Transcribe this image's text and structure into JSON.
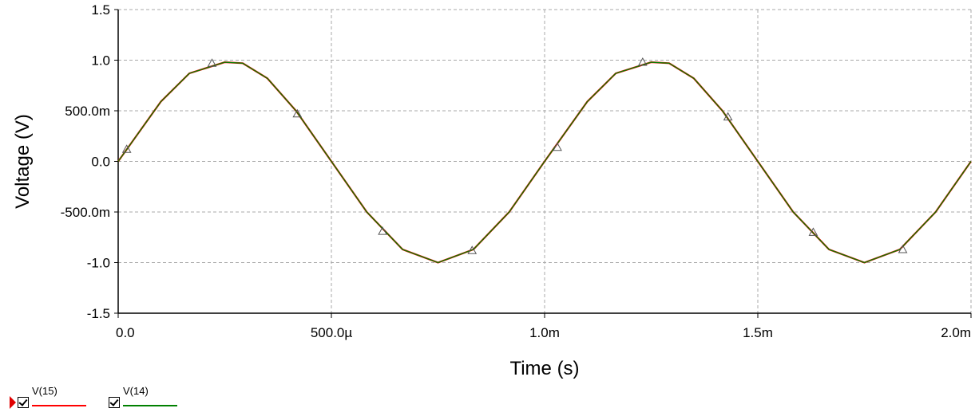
{
  "chart_data": {
    "type": "line",
    "title": "",
    "xlabel": "Time (s)",
    "ylabel": "Voltage (V)",
    "xlim": [
      0,
      0.002
    ],
    "ylim": [
      -1.5,
      1.5
    ],
    "grid": true,
    "x_ticks": [
      {
        "value": 0,
        "label": "0.0"
      },
      {
        "value": 0.0005,
        "label": "500.0µ"
      },
      {
        "value": 0.001,
        "label": "1.0m"
      },
      {
        "value": 0.0015,
        "label": "1.5m"
      },
      {
        "value": 0.002,
        "label": "2.0m"
      }
    ],
    "y_ticks": [
      {
        "value": 1.5,
        "label": "1.5"
      },
      {
        "value": 1.0,
        "label": "1.0"
      },
      {
        "value": 0.5,
        "label": "500.0m"
      },
      {
        "value": 0.0,
        "label": "0.0"
      },
      {
        "value": -0.5,
        "label": "-500.0m"
      },
      {
        "value": -1.0,
        "label": "-1.0"
      },
      {
        "value": -1.5,
        "label": "-1.5"
      }
    ],
    "x": [
      0,
      0.0001,
      0.000167,
      0.00025,
      0.000292,
      0.00035,
      0.000417,
      0.0005,
      0.000583,
      0.000667,
      0.00075,
      0.000833,
      0.000917,
      0.001,
      0.0011,
      0.001167,
      0.00125,
      0.001292,
      0.00135,
      0.001417,
      0.0015,
      0.001583,
      0.001667,
      0.00175,
      0.001833,
      0.001917,
      0.002
    ],
    "series": [
      {
        "name": "V(15)",
        "color": "#ff0000",
        "values": [
          0.0,
          0.59,
          0.87,
          0.98,
          0.97,
          0.82,
          0.5,
          0.0,
          -0.5,
          -0.87,
          -1.0,
          -0.87,
          -0.5,
          0.0,
          0.59,
          0.87,
          0.98,
          0.97,
          0.82,
          0.5,
          0.0,
          -0.5,
          -0.87,
          -1.0,
          -0.87,
          -0.5,
          0.0
        ]
      },
      {
        "name": "V(14)",
        "color": "#008000",
        "values": [
          0.0,
          0.59,
          0.87,
          0.98,
          0.97,
          0.82,
          0.5,
          0.0,
          -0.5,
          -0.87,
          -1.0,
          -0.87,
          -0.5,
          0.0,
          0.59,
          0.87,
          0.98,
          0.97,
          0.82,
          0.5,
          0.0,
          -0.5,
          -0.87,
          -1.0,
          -0.87,
          -0.5,
          0.0
        ]
      }
    ],
    "markers": [
      {
        "x": 2e-05,
        "y": 0.12
      },
      {
        "x": 0.00022,
        "y": 0.97
      },
      {
        "x": 0.00042,
        "y": 0.47
      },
      {
        "x": 0.00062,
        "y": -0.69
      },
      {
        "x": 0.00083,
        "y": -0.88
      },
      {
        "x": 0.00103,
        "y": 0.14
      },
      {
        "x": 0.00123,
        "y": 0.98
      },
      {
        "x": 0.00143,
        "y": 0.44
      },
      {
        "x": 0.00163,
        "y": -0.7
      },
      {
        "x": 0.00184,
        "y": -0.87
      }
    ]
  },
  "legend": {
    "items": [
      {
        "label": "V(15)",
        "color": "#ff0000"
      },
      {
        "label": "V(14)",
        "color": "#008000"
      }
    ]
  }
}
